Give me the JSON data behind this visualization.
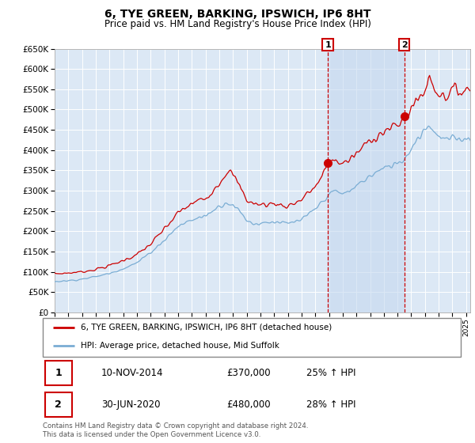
{
  "title": "6, TYE GREEN, BARKING, IPSWICH, IP6 8HT",
  "subtitle": "Price paid vs. HM Land Registry's House Price Index (HPI)",
  "ylim": [
    0,
    650000
  ],
  "ytick_step": 50000,
  "background_color": "#ffffff",
  "plot_bg_color": "#dce8f5",
  "grid_color": "#ffffff",
  "red_line_color": "#cc0000",
  "blue_line_color": "#7aadd4",
  "shade_color": "#c5d8ef",
  "marker1": {
    "x_year": 2014.92,
    "label": "1",
    "date": "10-NOV-2014",
    "price": "£370,000",
    "hpi": "25% ↑ HPI"
  },
  "marker2": {
    "x_year": 2020.5,
    "label": "2",
    "date": "30-JUN-2020",
    "price": "£480,000",
    "hpi": "28% ↑ HPI"
  },
  "legend_label1": "6, TYE GREEN, BARKING, IPSWICH, IP6 8HT (detached house)",
  "legend_label2": "HPI: Average price, detached house, Mid Suffolk",
  "footer": "Contains HM Land Registry data © Crown copyright and database right 2024.\nThis data is licensed under the Open Government Licence v3.0.",
  "xmin": 1995.0,
  "xmax": 2025.3
}
